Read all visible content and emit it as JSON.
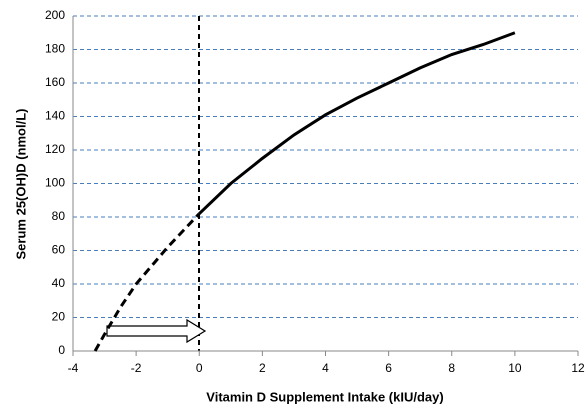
{
  "chart_data": {
    "type": "line",
    "xlabel": "Vitamin D Supplement Intake (kIU/day)",
    "ylabel": "Serum 25(OH)D (nmol/L)",
    "series": [
      {
        "x": [
          0,
          1,
          2,
          3,
          4,
          5,
          6,
          7,
          8,
          9,
          10
        ],
        "values": [
          82,
          100,
          115,
          129,
          141,
          151,
          160,
          169,
          177,
          183,
          190
        ],
        "color": "#000000",
        "dashed": false
      },
      {
        "x": [
          -3.3,
          -3,
          -2.5,
          -2,
          -1,
          0
        ],
        "values": [
          0,
          10,
          26,
          40,
          62,
          82
        ],
        "color": "#000000",
        "dashed": true
      }
    ],
    "xlim": [
      -4,
      12
    ],
    "xticks": [
      -4,
      -2,
      0,
      2,
      4,
      6,
      8,
      10,
      12
    ],
    "ylim": [
      0,
      200
    ],
    "yticks": [
      0,
      20,
      40,
      60,
      80,
      100,
      120,
      140,
      160,
      180,
      200
    ],
    "grid": true,
    "grid_color": "#4a7ebb"
  }
}
